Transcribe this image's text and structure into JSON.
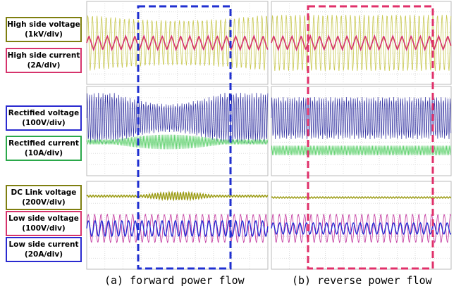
{
  "labels": [
    {
      "title": "High side voltage",
      "scale": "(1kV/div)"
    },
    {
      "title": "High side current",
      "scale": "(2A/div)"
    },
    {
      "title": "Rectified voltage",
      "scale": "(100V/div)"
    },
    {
      "title": "Rectified current",
      "scale": "(10A/div)"
    },
    {
      "title": "DC Link voltage",
      "scale": "(200V/div)"
    },
    {
      "title": "Low side voltage",
      "scale": "(100V/div)"
    },
    {
      "title": "Low side current",
      "scale": "(20A/div)"
    }
  ],
  "captions": [
    "(a) forward power flow",
    "(b) reverse power flow"
  ]
}
